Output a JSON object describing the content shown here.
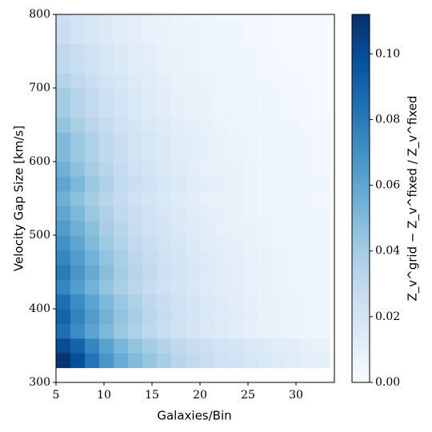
{
  "chart_data": {
    "type": "heatmap",
    "xlabel": "Galaxies/Bin",
    "ylabel": "Velocity Gap Size [km/s]",
    "colorbar_label": "Z_v^grid − Z_v^fixed / Z_v^fixed",
    "colormap": "Blues",
    "xlim": [
      5,
      34
    ],
    "ylim": [
      300,
      800
    ],
    "xticks": [
      5,
      10,
      15,
      20,
      25,
      30
    ],
    "yticks": [
      300,
      400,
      500,
      600,
      700,
      800
    ],
    "clim": [
      0,
      0.112
    ],
    "cticks": [
      {
        "value": 0,
        "label": "0.00"
      },
      {
        "value": 0.02,
        "label": "0.02"
      },
      {
        "value": 0.04,
        "label": "0.04"
      },
      {
        "value": 0.06,
        "label": "0.06"
      },
      {
        "value": 0.08,
        "label": "0.08"
      },
      {
        "value": 0.1,
        "label": "0.10"
      }
    ],
    "xbins": [
      5,
      6.5,
      8,
      9.5,
      11,
      12.5,
      14,
      15.5,
      17,
      18.5,
      20,
      21.5,
      23,
      24.5,
      26,
      27.5,
      29,
      30.5,
      32,
      33.5
    ],
    "ybins": [
      320,
      340,
      360,
      380,
      400,
      420,
      440,
      460,
      480,
      500,
      520,
      540,
      560,
      580,
      600,
      620,
      640,
      660,
      680,
      700,
      720,
      740,
      760,
      780,
      800
    ],
    "z": [
      [
        0.11,
        0.099,
        0.083,
        0.068,
        0.057,
        0.05,
        0.044,
        0.039,
        0.033,
        0.03,
        0.026,
        0.023,
        0.021,
        0.019,
        0.017,
        0.014,
        0.013,
        0.011,
        0.01
      ],
      [
        0.1,
        0.09,
        0.075,
        0.062,
        0.052,
        0.045,
        0.04,
        0.035,
        0.03,
        0.027,
        0.024,
        0.021,
        0.019,
        0.017,
        0.015,
        0.013,
        0.012,
        0.01,
        0.009
      ],
      [
        0.085,
        0.072,
        0.061,
        0.051,
        0.043,
        0.036,
        0.031,
        0.026,
        0.022,
        0.019,
        0.016,
        0.014,
        0.012,
        0.01,
        0.009,
        0.008,
        0.007,
        0.006,
        0.005
      ],
      [
        0.09,
        0.077,
        0.065,
        0.054,
        0.045,
        0.038,
        0.032,
        0.027,
        0.023,
        0.02,
        0.017,
        0.014,
        0.013,
        0.011,
        0.009,
        0.008,
        0.007,
        0.006,
        0.005
      ],
      [
        0.085,
        0.072,
        0.061,
        0.051,
        0.043,
        0.036,
        0.031,
        0.026,
        0.022,
        0.019,
        0.016,
        0.014,
        0.012,
        0.01,
        0.009,
        0.008,
        0.007,
        0.006,
        0.005
      ],
      [
        0.075,
        0.064,
        0.054,
        0.045,
        0.038,
        0.032,
        0.027,
        0.023,
        0.02,
        0.017,
        0.014,
        0.012,
        0.011,
        0.009,
        0.008,
        0.007,
        0.006,
        0.005,
        0.005
      ],
      [
        0.08,
        0.068,
        0.058,
        0.048,
        0.04,
        0.034,
        0.029,
        0.024,
        0.021,
        0.018,
        0.015,
        0.013,
        0.011,
        0.01,
        0.008,
        0.007,
        0.006,
        0.006,
        0.005
      ],
      [
        0.075,
        0.064,
        0.054,
        0.045,
        0.038,
        0.032,
        0.027,
        0.023,
        0.02,
        0.017,
        0.014,
        0.012,
        0.011,
        0.009,
        0.008,
        0.007,
        0.006,
        0.005,
        0.005
      ],
      [
        0.07,
        0.06,
        0.05,
        0.042,
        0.035,
        0.029,
        0.025,
        0.021,
        0.018,
        0.015,
        0.013,
        0.011,
        0.01,
        0.008,
        0.007,
        0.006,
        0.006,
        0.005,
        0.004
      ],
      [
        0.065,
        0.055,
        0.047,
        0.039,
        0.033,
        0.027,
        0.023,
        0.02,
        0.017,
        0.014,
        0.012,
        0.01,
        0.009,
        0.008,
        0.007,
        0.006,
        0.005,
        0.005,
        0.004
      ],
      [
        0.06,
        0.051,
        0.043,
        0.036,
        0.03,
        0.025,
        0.022,
        0.018,
        0.016,
        0.013,
        0.011,
        0.01,
        0.008,
        0.007,
        0.006,
        0.005,
        0.005,
        0.004,
        0.004
      ],
      [
        0.055,
        0.047,
        0.04,
        0.033,
        0.028,
        0.023,
        0.02,
        0.017,
        0.014,
        0.012,
        0.01,
        0.009,
        0.008,
        0.007,
        0.006,
        0.005,
        0.004,
        0.004,
        0.003
      ],
      [
        0.06,
        0.051,
        0.043,
        0.036,
        0.03,
        0.025,
        0.022,
        0.018,
        0.016,
        0.013,
        0.011,
        0.01,
        0.008,
        0.007,
        0.006,
        0.005,
        0.005,
        0.004,
        0.004
      ],
      [
        0.055,
        0.047,
        0.04,
        0.033,
        0.028,
        0.023,
        0.02,
        0.017,
        0.014,
        0.012,
        0.01,
        0.009,
        0.008,
        0.007,
        0.006,
        0.005,
        0.004,
        0.004,
        0.003
      ],
      [
        0.05,
        0.043,
        0.036,
        0.03,
        0.025,
        0.021,
        0.018,
        0.015,
        0.013,
        0.011,
        0.01,
        0.008,
        0.007,
        0.006,
        0.005,
        0.005,
        0.004,
        0.004,
        0.003
      ],
      [
        0.05,
        0.043,
        0.036,
        0.03,
        0.025,
        0.021,
        0.018,
        0.015,
        0.013,
        0.011,
        0.01,
        0.008,
        0.007,
        0.006,
        0.005,
        0.005,
        0.004,
        0.004,
        0.003
      ],
      [
        0.045,
        0.038,
        0.032,
        0.027,
        0.023,
        0.019,
        0.016,
        0.014,
        0.012,
        0.01,
        0.009,
        0.007,
        0.006,
        0.005,
        0.005,
        0.004,
        0.004,
        0.003,
        0.003
      ],
      [
        0.04,
        0.034,
        0.029,
        0.024,
        0.02,
        0.017,
        0.014,
        0.012,
        0.01,
        0.009,
        0.008,
        0.006,
        0.006,
        0.005,
        0.004,
        0.004,
        0.003,
        0.003,
        0.002
      ],
      [
        0.04,
        0.034,
        0.029,
        0.024,
        0.02,
        0.017,
        0.014,
        0.012,
        0.01,
        0.009,
        0.008,
        0.006,
        0.006,
        0.005,
        0.004,
        0.004,
        0.003,
        0.003,
        0.002
      ],
      [
        0.035,
        0.03,
        0.025,
        0.021,
        0.018,
        0.015,
        0.013,
        0.011,
        0.009,
        0.008,
        0.007,
        0.006,
        0.005,
        0.004,
        0.004,
        0.003,
        0.003,
        0.002,
        0.002
      ],
      [
        0.03,
        0.026,
        0.022,
        0.018,
        0.015,
        0.013,
        0.011,
        0.009,
        0.008,
        0.007,
        0.006,
        0.005,
        0.004,
        0.004,
        0.003,
        0.003,
        0.002,
        0.002,
        0.002
      ],
      [
        0.03,
        0.026,
        0.022,
        0.018,
        0.015,
        0.013,
        0.011,
        0.009,
        0.008,
        0.007,
        0.006,
        0.005,
        0.004,
        0.004,
        0.003,
        0.003,
        0.002,
        0.002,
        0.002
      ],
      [
        0.025,
        0.021,
        0.018,
        0.015,
        0.013,
        0.011,
        0.009,
        0.008,
        0.007,
        0.006,
        0.005,
        0.004,
        0.004,
        0.003,
        0.003,
        0.002,
        0.002,
        0.002,
        0.002
      ],
      [
        0.025,
        0.021,
        0.018,
        0.015,
        0.013,
        0.011,
        0.009,
        0.008,
        0.007,
        0.006,
        0.005,
        0.004,
        0.004,
        0.003,
        0.003,
        0.002,
        0.002,
        0.002,
        0.002
      ]
    ]
  }
}
